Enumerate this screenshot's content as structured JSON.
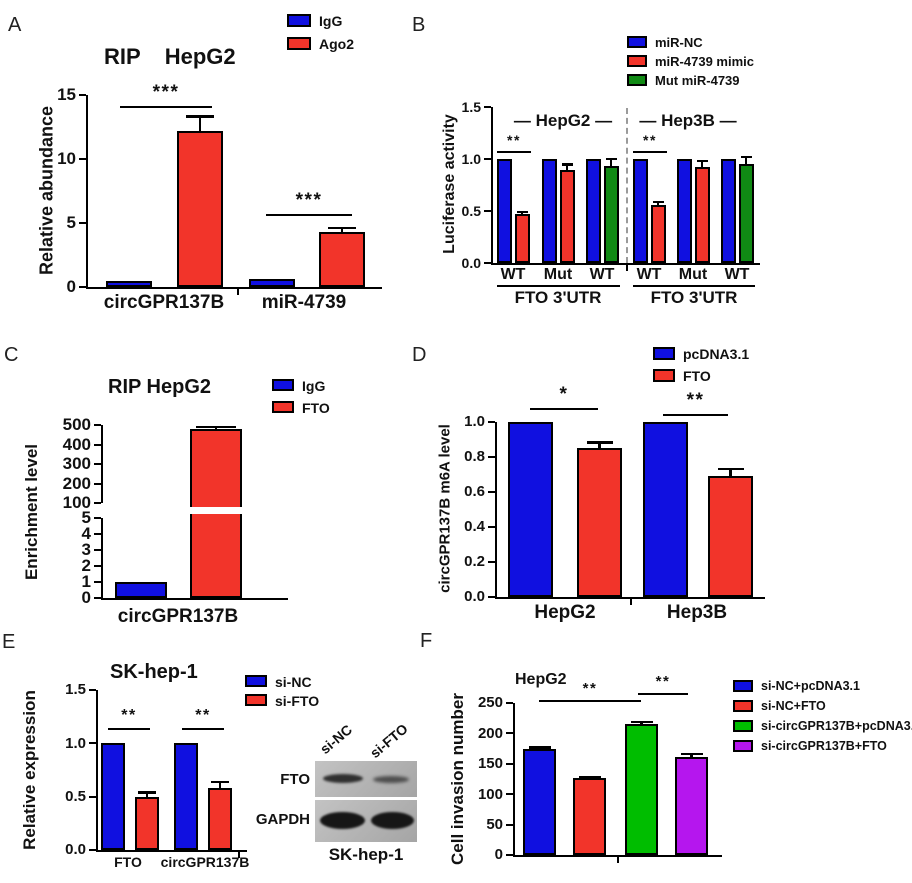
{
  "colors": {
    "blue": "#1010e0",
    "red": "#f2342a",
    "green_dark": "#108a14",
    "green": "#00bd00",
    "purple": "#b516ee"
  },
  "chart_data": [
    {
      "id": "A",
      "panel_label": "A",
      "type": "bar",
      "title": "RIP    HepG2",
      "ylabel": "Relative abundance",
      "ylim": [
        0,
        15
      ],
      "yticks": [
        "0",
        "5",
        "10",
        "15"
      ],
      "categories": [
        "circGPR137B",
        "miR-4739"
      ],
      "legend": [
        {
          "label": "IgG",
          "color": "blue"
        },
        {
          "label": "Ago2",
          "color": "red"
        }
      ],
      "series": [
        {
          "name": "IgG",
          "color": "blue",
          "values": [
            0.5,
            0.6
          ],
          "errors": [
            0.05,
            0.08
          ]
        },
        {
          "name": "Ago2",
          "color": "red",
          "values": [
            12.2,
            4.3
          ],
          "errors": [
            1.2,
            0.4
          ]
        }
      ],
      "significance": [
        {
          "label": "***",
          "group": "circGPR137B"
        },
        {
          "label": "***",
          "group": "miR-4739"
        }
      ]
    },
    {
      "id": "B",
      "panel_label": "B",
      "type": "bar",
      "ylabel": "Luciferase activity",
      "ylim": [
        0,
        1.5
      ],
      "yticks": [
        "0.0",
        "0.5",
        "1.0",
        "1.5"
      ],
      "group_headers": [
        "— HepG2 —",
        "— Hep3B —"
      ],
      "xticks": [
        "WT",
        "Mut",
        "WT",
        "WT",
        "Mut",
        "WT"
      ],
      "xgroup_label": "FTO 3'UTR",
      "legend": [
        {
          "label": "miR-NC",
          "color": "blue"
        },
        {
          "label": "miR-4739 mimic",
          "color": "red"
        },
        {
          "label": "Mut miR-4739",
          "color": "green_dark"
        }
      ],
      "bars": [
        {
          "name": "miR-NC",
          "color": "blue",
          "value": 1.0
        },
        {
          "name": "miR-4739 mimic",
          "color": "red",
          "value": 0.47,
          "err": 0.03
        },
        {
          "name": "miR-NC",
          "color": "blue",
          "value": 1.0
        },
        {
          "name": "miR-4739 mimic",
          "color": "red",
          "value": 0.89,
          "err": 0.07
        },
        {
          "name": "miR-NC",
          "color": "blue",
          "value": 1.0
        },
        {
          "name": "Mut miR-4739",
          "color": "green_dark",
          "value": 0.93,
          "err": 0.08
        },
        {
          "name": "miR-NC",
          "color": "blue",
          "value": 1.0
        },
        {
          "name": "miR-4739 mimic",
          "color": "red",
          "value": 0.56,
          "err": 0.04
        },
        {
          "name": "miR-NC",
          "color": "blue",
          "value": 1.0
        },
        {
          "name": "miR-4739 mimic",
          "color": "red",
          "value": 0.92,
          "err": 0.07
        },
        {
          "name": "miR-NC",
          "color": "blue",
          "value": 1.0
        },
        {
          "name": "Mut miR-4739",
          "color": "green_dark",
          "value": 0.95,
          "err": 0.08
        }
      ],
      "significance": [
        {
          "label": "**",
          "group": "HepG2 WT"
        },
        {
          "label": "**",
          "group": "Hep3B WT"
        }
      ]
    },
    {
      "id": "C",
      "panel_label": "C",
      "type": "bar-broken-axis",
      "title": "RIP HepG2",
      "ylabel": "Enrichment level",
      "axis_lower": {
        "lim": [
          0,
          5
        ],
        "ticks": [
          "0",
          "1",
          "2",
          "3",
          "4",
          "5"
        ]
      },
      "axis_upper": {
        "lim": [
          100,
          500
        ],
        "ticks": [
          "100",
          "200",
          "300",
          "400",
          "500"
        ]
      },
      "categories": [
        "circGPR137B"
      ],
      "legend": [
        {
          "label": "IgG",
          "color": "blue"
        },
        {
          "label": "FTO",
          "color": "red"
        }
      ],
      "bars": [
        {
          "name": "IgG",
          "color": "blue",
          "value": 1.0,
          "err": 0
        },
        {
          "name": "FTO",
          "color": "red",
          "value": 480,
          "err": 12
        }
      ]
    },
    {
      "id": "D",
      "panel_label": "D",
      "type": "bar",
      "ylabel": "circGPR137B m6A level",
      "ylim": [
        0,
        1.0
      ],
      "yticks": [
        "0.0",
        "0.2",
        "0.4",
        "0.6",
        "0.8",
        "1.0"
      ],
      "categories": [
        "HepG2",
        "Hep3B"
      ],
      "legend": [
        {
          "label": "pcDNA3.1",
          "color": "blue"
        },
        {
          "label": "FTO",
          "color": "red"
        }
      ],
      "series": [
        {
          "name": "pcDNA3.1",
          "color": "blue",
          "values": [
            1.0,
            1.0
          ]
        },
        {
          "name": "FTO",
          "color": "red",
          "values": [
            0.85,
            0.69
          ],
          "errors": [
            0.04,
            0.05
          ]
        }
      ],
      "significance": [
        {
          "label": "*",
          "group": "HepG2"
        },
        {
          "label": "**",
          "group": "Hep3B"
        }
      ]
    },
    {
      "id": "E",
      "panel_label": "E",
      "type": "bar",
      "title": "SK-hep-1",
      "ylabel": "Relative expression",
      "ylim": [
        0,
        1.5
      ],
      "yticks": [
        "0.0",
        "0.5",
        "1.0",
        "1.5"
      ],
      "categories": [
        "FTO",
        "circGPR137B"
      ],
      "legend": [
        {
          "label": "si-NC",
          "color": "blue"
        },
        {
          "label": "si-FTO",
          "color": "red"
        }
      ],
      "series": [
        {
          "name": "si-NC",
          "color": "blue",
          "values": [
            1.0,
            1.0
          ]
        },
        {
          "name": "si-FTO",
          "color": "red",
          "values": [
            0.5,
            0.58
          ],
          "errors": [
            0.05,
            0.07
          ]
        }
      ],
      "significance": [
        {
          "label": "**",
          "group": "FTO"
        },
        {
          "label": "**",
          "group": "circGPR137B"
        }
      ],
      "blot": {
        "lanes": [
          "si-NC",
          "si-FTO"
        ],
        "rows": [
          "FTO",
          "GAPDH"
        ],
        "caption": "SK-hep-1"
      }
    },
    {
      "id": "F",
      "panel_label": "F",
      "type": "bar",
      "title": "HepG2",
      "ylabel": "Cell invasion number",
      "ylim": [
        0,
        250
      ],
      "yticks": [
        "0",
        "50",
        "100",
        "150",
        "200",
        "250"
      ],
      "legend": [
        {
          "label": "si-NC+pcDNA3.1",
          "color": "blue"
        },
        {
          "label": "si-NC+FTO",
          "color": "red"
        },
        {
          "label": "si-circGPR137B+pcDNA3.1",
          "color": "green"
        },
        {
          "label": "si-circGPR137B+FTO",
          "color": "purple"
        }
      ],
      "bars": [
        {
          "name": "si-NC+pcDNA3.1",
          "color": "blue",
          "value": 175,
          "err": 4
        },
        {
          "name": "si-NC+FTO",
          "color": "red",
          "value": 127,
          "err": 3
        },
        {
          "name": "si-circGPR137B+pcDNA3.1",
          "color": "green",
          "value": 215,
          "err": 6
        },
        {
          "name": "si-circGPR137B+FTO",
          "color": "purple",
          "value": 161,
          "err": 7
        }
      ],
      "significance": [
        {
          "label": "**",
          "between": [
            "si-NC+pcDNA3.1",
            "si-circGPR137B+pcDNA3.1"
          ]
        },
        {
          "label": "**",
          "between": [
            "si-circGPR137B+pcDNA3.1",
            "si-circGPR137B+FTO"
          ]
        }
      ]
    }
  ]
}
